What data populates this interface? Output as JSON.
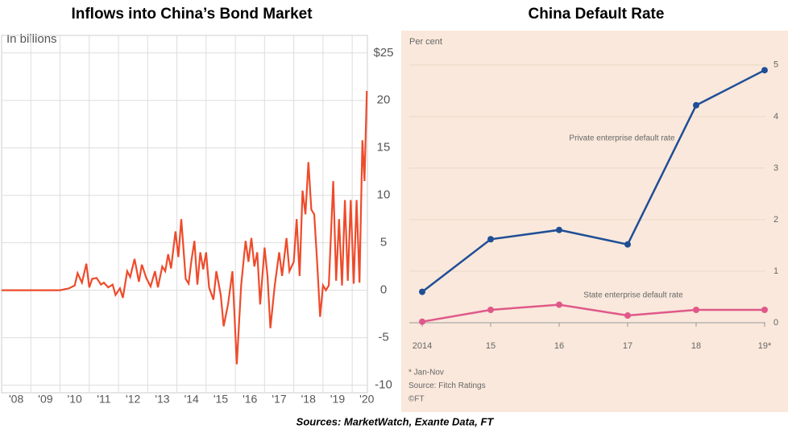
{
  "chart_data": [
    {
      "type": "line",
      "title": "Inflows into China’s Bond Market",
      "ylabel": "In billions",
      "x": [
        2008.0,
        2008.5,
        2009.0,
        2009.5,
        2010.0,
        2010.3,
        2010.5,
        2010.6,
        2010.75,
        2010.9,
        2011.0,
        2011.1,
        2011.25,
        2011.4,
        2011.5,
        2011.65,
        2011.8,
        2011.9,
        2012.05,
        2012.15,
        2012.3,
        2012.4,
        2012.55,
        2012.7,
        2012.8,
        2012.95,
        2013.1,
        2013.25,
        2013.35,
        2013.5,
        2013.6,
        2013.7,
        2013.8,
        2013.95,
        2014.05,
        2014.15,
        2014.3,
        2014.4,
        2014.5,
        2014.6,
        2014.7,
        2014.8,
        2014.9,
        2015.0,
        2015.1,
        2015.25,
        2015.35,
        2015.5,
        2015.6,
        2015.75,
        2015.9,
        2016.05,
        2016.2,
        2016.35,
        2016.45,
        2016.55,
        2016.65,
        2016.75,
        2016.85,
        2017.0,
        2017.1,
        2017.2,
        2017.35,
        2017.5,
        2017.6,
        2017.75,
        2017.85,
        2018.0,
        2018.1,
        2018.2,
        2018.3,
        2018.4,
        2018.5,
        2018.6,
        2018.7,
        2018.8,
        2018.9,
        2019.0,
        2019.1,
        2019.2,
        2019.35,
        2019.45,
        2019.55,
        2019.65,
        2019.75,
        2019.85,
        2019.95,
        2020.05,
        2020.15,
        2020.25,
        2020.35,
        2020.42,
        2020.5
      ],
      "values": [
        0,
        0,
        0,
        0,
        0,
        0.2,
        0.5,
        1.8,
        0.8,
        2.8,
        0.3,
        1.2,
        1.3,
        0.6,
        0.8,
        0.3,
        0.6,
        -0.5,
        0.2,
        -0.8,
        2.0,
        1.4,
        3.3,
        0.9,
        2.7,
        1.3,
        0.4,
        2.0,
        0.3,
        2.5,
        2.0,
        3.8,
        2.3,
        6.2,
        3.5,
        7.5,
        1.2,
        0.7,
        3.2,
        5.2,
        0.6,
        4.0,
        2.2,
        4.0,
        0.3,
        -1.0,
        2.0,
        -0.5,
        -3.8,
        -1.5,
        2.0,
        -7.8,
        0.5,
        5.2,
        3.0,
        5.5,
        2.5,
        4.0,
        -1.5,
        4.5,
        1.5,
        -4.0,
        0.5,
        4.0,
        1.5,
        5.5,
        2.0,
        3.0,
        7.5,
        1.5,
        10.5,
        8.0,
        13.5,
        8.5,
        8.0,
        3.0,
        -2.8,
        0.5,
        0.0,
        0.5,
        11.5,
        1.0,
        7.5,
        0.5,
        9.5,
        1.0,
        9.5,
        0.7,
        9.5,
        0.8,
        15.8,
        11.5,
        21.0
      ],
      "color": "#ee4b2b",
      "xlim": [
        2008,
        2020.52
      ],
      "xticks": [
        {
          "value": 2008,
          "label": "'08"
        },
        {
          "value": 2009,
          "label": "'09"
        },
        {
          "value": 2010,
          "label": "'10"
        },
        {
          "value": 2011,
          "label": "'11"
        },
        {
          "value": 2012,
          "label": "'12"
        },
        {
          "value": 2013,
          "label": "'13"
        },
        {
          "value": 2014,
          "label": "'14"
        },
        {
          "value": 2015,
          "label": "'15"
        },
        {
          "value": 2016,
          "label": "'16"
        },
        {
          "value": 2017,
          "label": "'17"
        },
        {
          "value": 2018,
          "label": "'18"
        },
        {
          "value": 2019,
          "label": "'19"
        },
        {
          "value": 2020,
          "label": "'20"
        }
      ],
      "ylim": [
        -10.8,
        26
      ],
      "yticks": [
        {
          "value": 25,
          "label": "$25"
        },
        20,
        15,
        10,
        5,
        0,
        -5,
        -10
      ],
      "grid": true
    },
    {
      "type": "line_category",
      "title": "China Default Rate",
      "ylabel": "Per cent",
      "categories": [
        "2014",
        "15",
        "16",
        "17",
        "18",
        "19*"
      ],
      "series": [
        {
          "name": "Private enterprise default rate",
          "color": "#1f4e96",
          "values": [
            0.6,
            1.62,
            1.8,
            1.52,
            4.22,
            4.9
          ]
        },
        {
          "name": "State enterprise default rate",
          "color": "#e0588a",
          "values": [
            0.02,
            0.25,
            0.35,
            0.14,
            0.25,
            0.25
          ]
        }
      ],
      "ylim": [
        0,
        5.2
      ],
      "yticks": [
        0,
        1,
        2,
        3,
        4,
        5
      ],
      "grid": true,
      "notes": [
        "* Jan-Nov",
        "Source: Fitch Ratings",
        "©FT"
      ]
    }
  ],
  "source": "Sources: MarketWatch, Exante Data, FT"
}
